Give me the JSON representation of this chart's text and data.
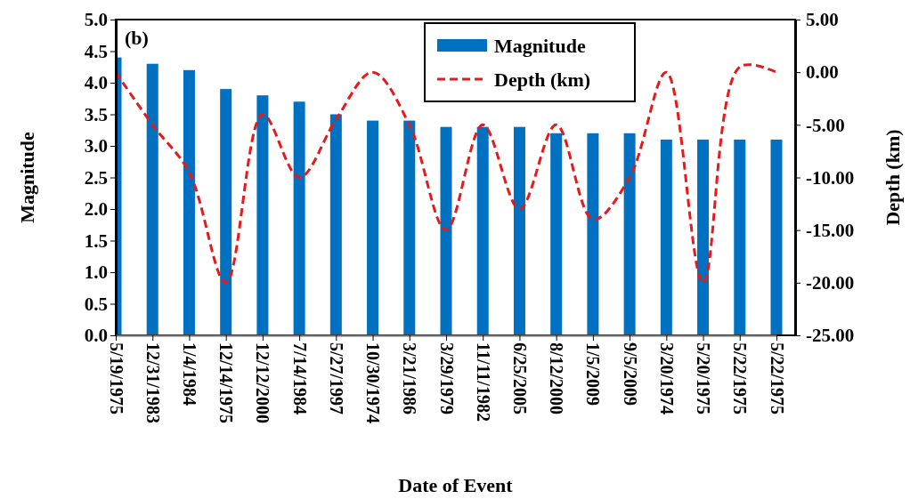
{
  "chart_data": {
    "type": "bar",
    "xlabel": "Date of Event",
    "ylabel": "Magnitude",
    "y2label": "Depth (km)",
    "annotations": [
      "(b)"
    ],
    "categories": [
      "5/19/1975",
      "12/31/1983",
      "1/4/1984",
      "12/14/1975",
      "12/12/2000",
      "7/14/1984",
      "5/27/1997",
      "10/30/1974",
      "3/21/1986",
      "3/29/1979",
      "11/11/1982",
      "6/25/2005",
      "8/12/2000",
      "1/5/2009",
      "9/5/2009",
      "3/20/1974",
      "5/20/1975",
      "5/22/1975",
      "5/22/1975"
    ],
    "series": [
      {
        "name": "Magnitude",
        "color": "#0070c0",
        "values": [
          4.4,
          4.3,
          4.2,
          3.9,
          3.8,
          3.7,
          3.5,
          3.4,
          3.4,
          3.3,
          3.3,
          3.3,
          3.2,
          3.2,
          3.2,
          3.1,
          3.1,
          3.1,
          3.1
        ]
      },
      {
        "name": "Depth (km)",
        "type": "line",
        "axis": "y2",
        "color": "#e41a1c",
        "line_style": "dashed",
        "values": [
          0,
          -5,
          -9.5,
          -20,
          -4,
          -10,
          -4.5,
          0,
          -5,
          -15,
          -5,
          -13,
          -5,
          -14,
          -10,
          0,
          -20,
          0.5,
          0
        ]
      }
    ],
    "ylim": [
      0,
      5
    ],
    "yticks": [
      {
        "value": 0,
        "label": "0.0"
      },
      {
        "value": 0.5,
        "label": "0.5"
      },
      {
        "value": 1,
        "label": "1.0"
      },
      {
        "value": 1.5,
        "label": "1.5"
      },
      {
        "value": 2,
        "label": "2.0"
      },
      {
        "value": 2.5,
        "label": "2.5"
      },
      {
        "value": 3,
        "label": "3.0"
      },
      {
        "value": 3.5,
        "label": "3.5"
      },
      {
        "value": 4,
        "label": "4.0"
      },
      {
        "value": 4.5,
        "label": "4.5"
      },
      {
        "value": 5,
        "label": "5.0"
      }
    ],
    "y2lim": [
      -25,
      5
    ],
    "y2ticks": [
      {
        "value": -25,
        "label": "-25.00"
      },
      {
        "value": -20,
        "label": "-20.00"
      },
      {
        "value": -15,
        "label": "-15.00"
      },
      {
        "value": -10,
        "label": "-10.00"
      },
      {
        "value": -5,
        "label": "-5.00"
      },
      {
        "value": 0,
        "label": "0.00"
      },
      {
        "value": 5,
        "label": "5.00"
      }
    ],
    "legend": "top",
    "grid": false
  }
}
